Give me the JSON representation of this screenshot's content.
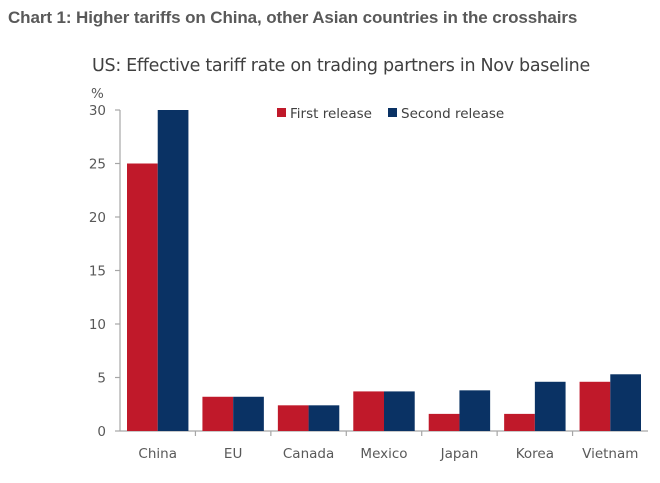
{
  "figure_title": "Chart 1: Higher tariffs on China, other Asian countries in the crosshairs",
  "chart_data": {
    "type": "bar",
    "title": "US: Effective tariff rate on trading partners in Nov baseline",
    "ylabel": "%",
    "xlabel": "",
    "ylim": [
      0,
      30
    ],
    "yticks": [
      0,
      5,
      10,
      15,
      20,
      25,
      30
    ],
    "grid": false,
    "legend_position": "top-center",
    "categories": [
      "China",
      "EU",
      "Canada",
      "Mexico",
      "Japan",
      "Korea",
      "Vietnam"
    ],
    "series": [
      {
        "name": "First release",
        "color": "#C0192A",
        "values": [
          25,
          3.2,
          2.4,
          3.7,
          1.6,
          1.6,
          4.6
        ]
      },
      {
        "name": "Second release",
        "color": "#0A3264",
        "values": [
          30,
          3.2,
          2.4,
          3.7,
          3.8,
          4.6,
          5.3
        ]
      }
    ]
  }
}
